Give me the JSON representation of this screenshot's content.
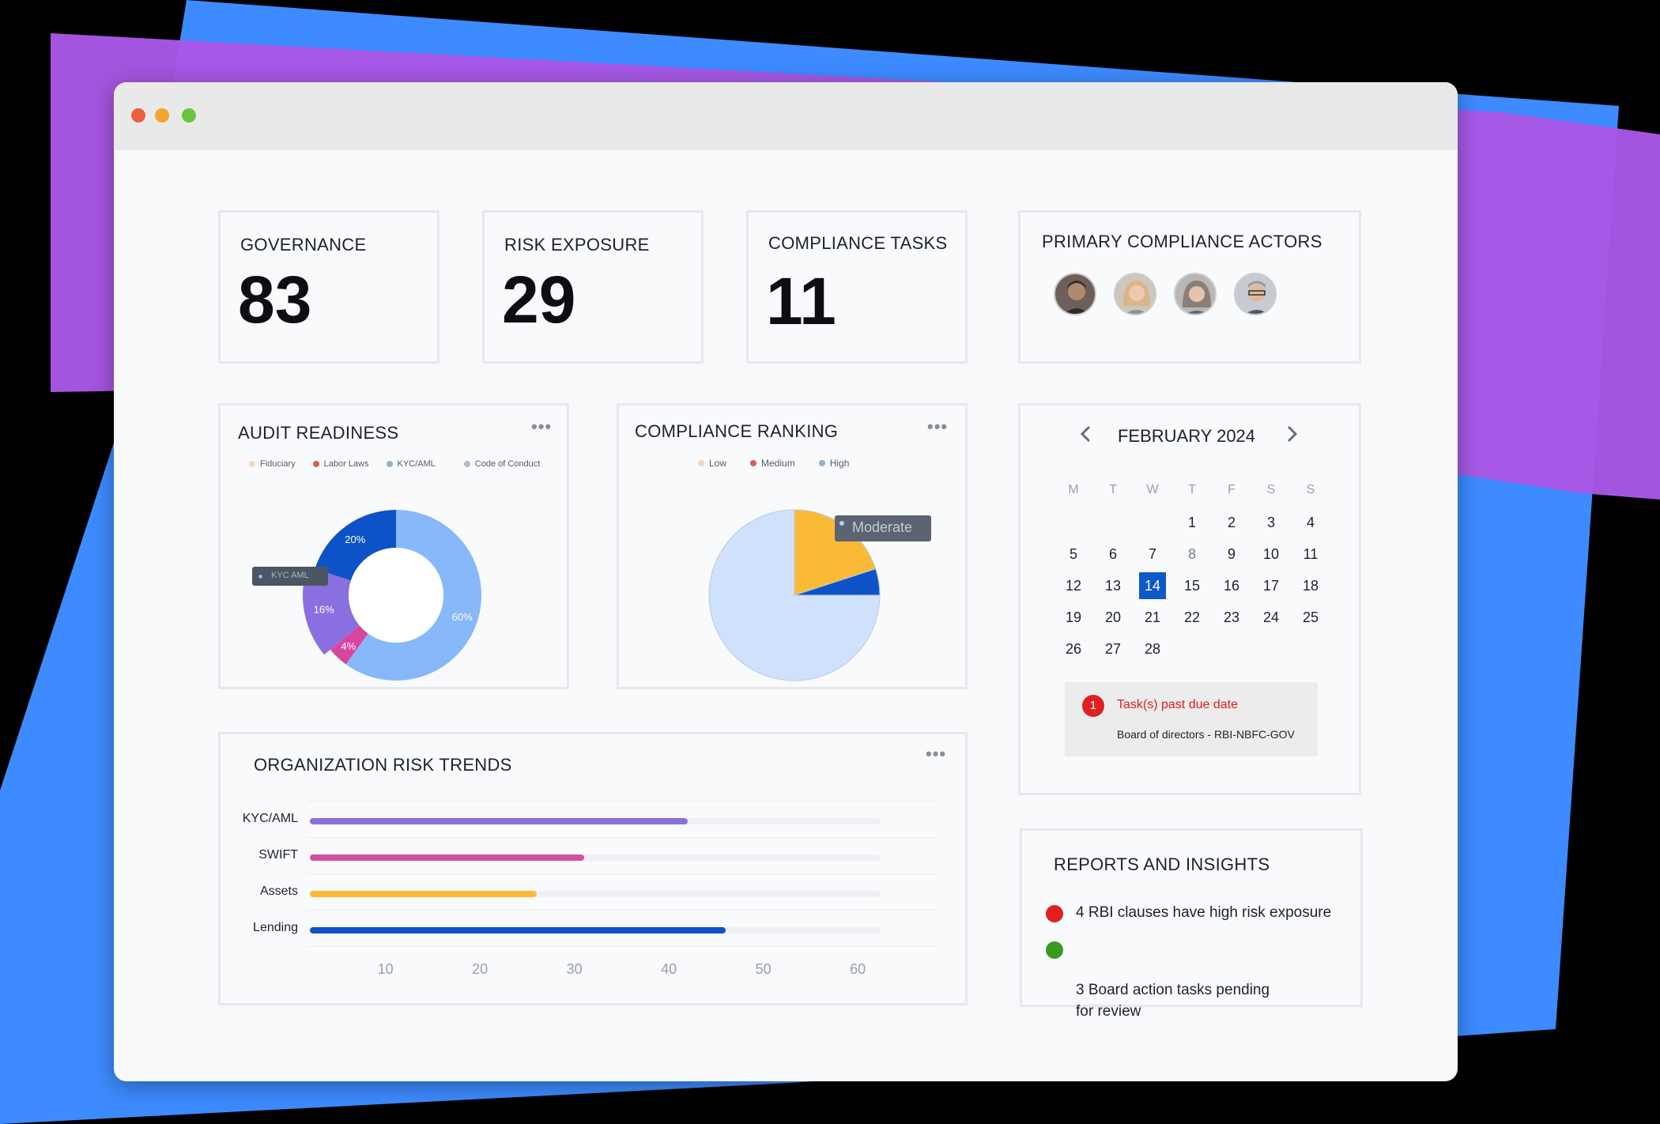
{
  "window": {
    "controls": [
      "close",
      "minimize",
      "maximize"
    ],
    "control_colors": {
      "close": "#ec5f3f",
      "minimize": "#f1a72f",
      "maximize": "#6bc43d"
    }
  },
  "colors": {
    "accent": "#0d58c8",
    "background_purple": "#a958e6",
    "background_blue": "#3d8bff"
  },
  "kpis": [
    {
      "label": "GOVERNANCE",
      "value": "83"
    },
    {
      "label": "RISK EXPOSURE",
      "value": "29"
    },
    {
      "label": "COMPLIANCE TASKS",
      "value": "11"
    }
  ],
  "actors": {
    "title": "PRIMARY COMPLIANCE ACTORS",
    "count_shown": 4
  },
  "audit": {
    "title": "AUDIT READINESS",
    "menu": "•••",
    "tooltip": "KYC AML",
    "chart_data": {
      "type": "pie",
      "legend": [
        "Fiduciary",
        "Labor Laws",
        "KYC/AML",
        "Code of Conduct"
      ],
      "slices": [
        {
          "label": "Code of Conduct",
          "value": 60,
          "text": "60%",
          "color": "#86b8fa"
        },
        {
          "label": "Labor Laws",
          "value": 4,
          "text": "4%",
          "color": "#d6469e"
        },
        {
          "label": "KYC/AML",
          "value": 16,
          "text": "16%",
          "color": "#8a6fe0"
        },
        {
          "label": "Fiduciary",
          "value": 20,
          "text": "20%",
          "color": "#0d53c7"
        }
      ],
      "legend_colors": [
        "#f0d9bd",
        "#e15752",
        "#8fb3d1",
        "#a9bfd4"
      ]
    }
  },
  "ranking": {
    "title": "COMPLIANCE RANKING",
    "menu": "•••",
    "tooltip": "Moderate",
    "chart_data": {
      "type": "pie",
      "legend": [
        "Low",
        "Medium",
        "High"
      ],
      "legend_colors": [
        "#f0d9bd",
        "#e15752",
        "#8fb3d1"
      ],
      "slices": [
        {
          "label": "Moderate",
          "value": 75,
          "color": "#cfe1fd"
        },
        {
          "label": "Yellow",
          "value": 20,
          "color": "#fbba36"
        },
        {
          "label": "Blue",
          "value": 5,
          "color": "#0d53c7"
        }
      ]
    }
  },
  "calendar": {
    "month": "FEBRUARY 2024",
    "prev": "‹",
    "next": "›",
    "weekdays": [
      "M",
      "T",
      "W",
      "T",
      "F",
      "S",
      "S"
    ],
    "days": [
      "1",
      "2",
      "3",
      "4",
      "5",
      "6",
      "7",
      "8",
      "9",
      "10",
      "11",
      "12",
      "13",
      "14",
      "15",
      "16",
      "17",
      "18",
      "19",
      "20",
      "21",
      "22",
      "23",
      "24",
      "25",
      "26",
      "27",
      "28"
    ],
    "first_weekday_index": 3,
    "selected": "14",
    "dim": "8",
    "alert": {
      "count": "1",
      "title": "Task(s) past due date",
      "detail": "Board of directors - RBI-NBFC-GOV"
    }
  },
  "trends": {
    "title": "ORGANIZATION RISK TRENDS",
    "menu": "•••",
    "chart_data": {
      "type": "bar",
      "orientation": "horizontal",
      "categories": [
        "KYC/AML",
        "SWIFT",
        "Assets",
        "Lending"
      ],
      "values": [
        42,
        31,
        26,
        46
      ],
      "colors": [
        "#8a6fe0",
        "#d3509f",
        "#fbba36",
        "#0d53c7"
      ],
      "xticks": [
        "10",
        "20",
        "30",
        "40",
        "50",
        "60"
      ],
      "xlim": [
        2,
        62
      ]
    }
  },
  "reports": {
    "title": "REPORTS AND INSIGHTS",
    "items": [
      {
        "text": "4 RBI clauses have high risk exposure",
        "color": "#e02020"
      },
      {
        "text": "3 Board action tasks pending\nfor review",
        "color": "#3a9a1f"
      }
    ]
  }
}
